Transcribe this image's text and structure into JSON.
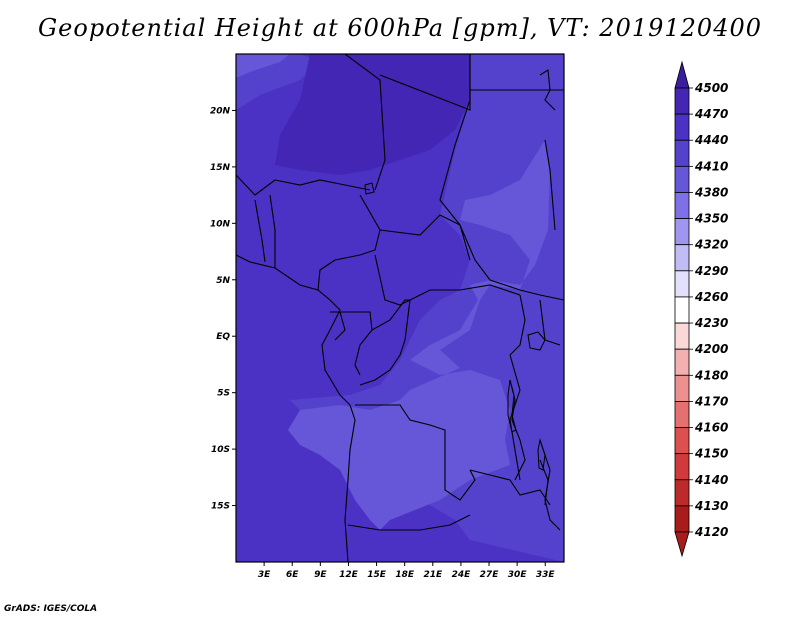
{
  "title": "Geopotential Height at 600hPa [gpm], VT: 2019120400",
  "footer": "GrADS: IGES/COLA",
  "map": {
    "projection": "latlon",
    "lon_range": [
      0,
      35
    ],
    "lat_range": [
      -20,
      25
    ],
    "lat_labels": [
      {
        "lat": 20,
        "text": "20N"
      },
      {
        "lat": 15,
        "text": "15N"
      },
      {
        "lat": 10,
        "text": "10N"
      },
      {
        "lat": 5,
        "text": "5N"
      },
      {
        "lat": 0,
        "text": "EQ"
      },
      {
        "lat": -5,
        "text": "5S"
      },
      {
        "lat": -10,
        "text": "10S"
      },
      {
        "lat": -15,
        "text": "15S"
      }
    ],
    "lon_labels": [
      {
        "lon": 3,
        "text": "3E"
      },
      {
        "lon": 6,
        "text": "6E"
      },
      {
        "lon": 9,
        "text": "9E"
      },
      {
        "lon": 12,
        "text": "12E"
      },
      {
        "lon": 15,
        "text": "15E"
      },
      {
        "lon": 18,
        "text": "18E"
      },
      {
        "lon": 21,
        "text": "21E"
      },
      {
        "lon": 24,
        "text": "24E"
      },
      {
        "lon": 27,
        "text": "27E"
      },
      {
        "lon": 30,
        "text": "30E"
      },
      {
        "lon": 33,
        "text": "33E"
      }
    ]
  },
  "legend": {
    "levels": [
      "4500",
      "4470",
      "4440",
      "4410",
      "4380",
      "4350",
      "4320",
      "4290",
      "4260",
      "4230",
      "4200",
      "4180",
      "4170",
      "4160",
      "4150",
      "4140",
      "4130",
      "4120"
    ],
    "colors": [
      "#3a1ea0",
      "#4326b4",
      "#4b32c4",
      "#5542cc",
      "#6656d8",
      "#7e70e6",
      "#a095f0",
      "#c2bcf6",
      "#e2e0fa",
      "#ffffff",
      "#fad8d8",
      "#f4b0b0",
      "#ec9090",
      "#e47070",
      "#dc5050",
      "#d03a3a",
      "#bc2a2a",
      "#a81c1c"
    ]
  }
}
